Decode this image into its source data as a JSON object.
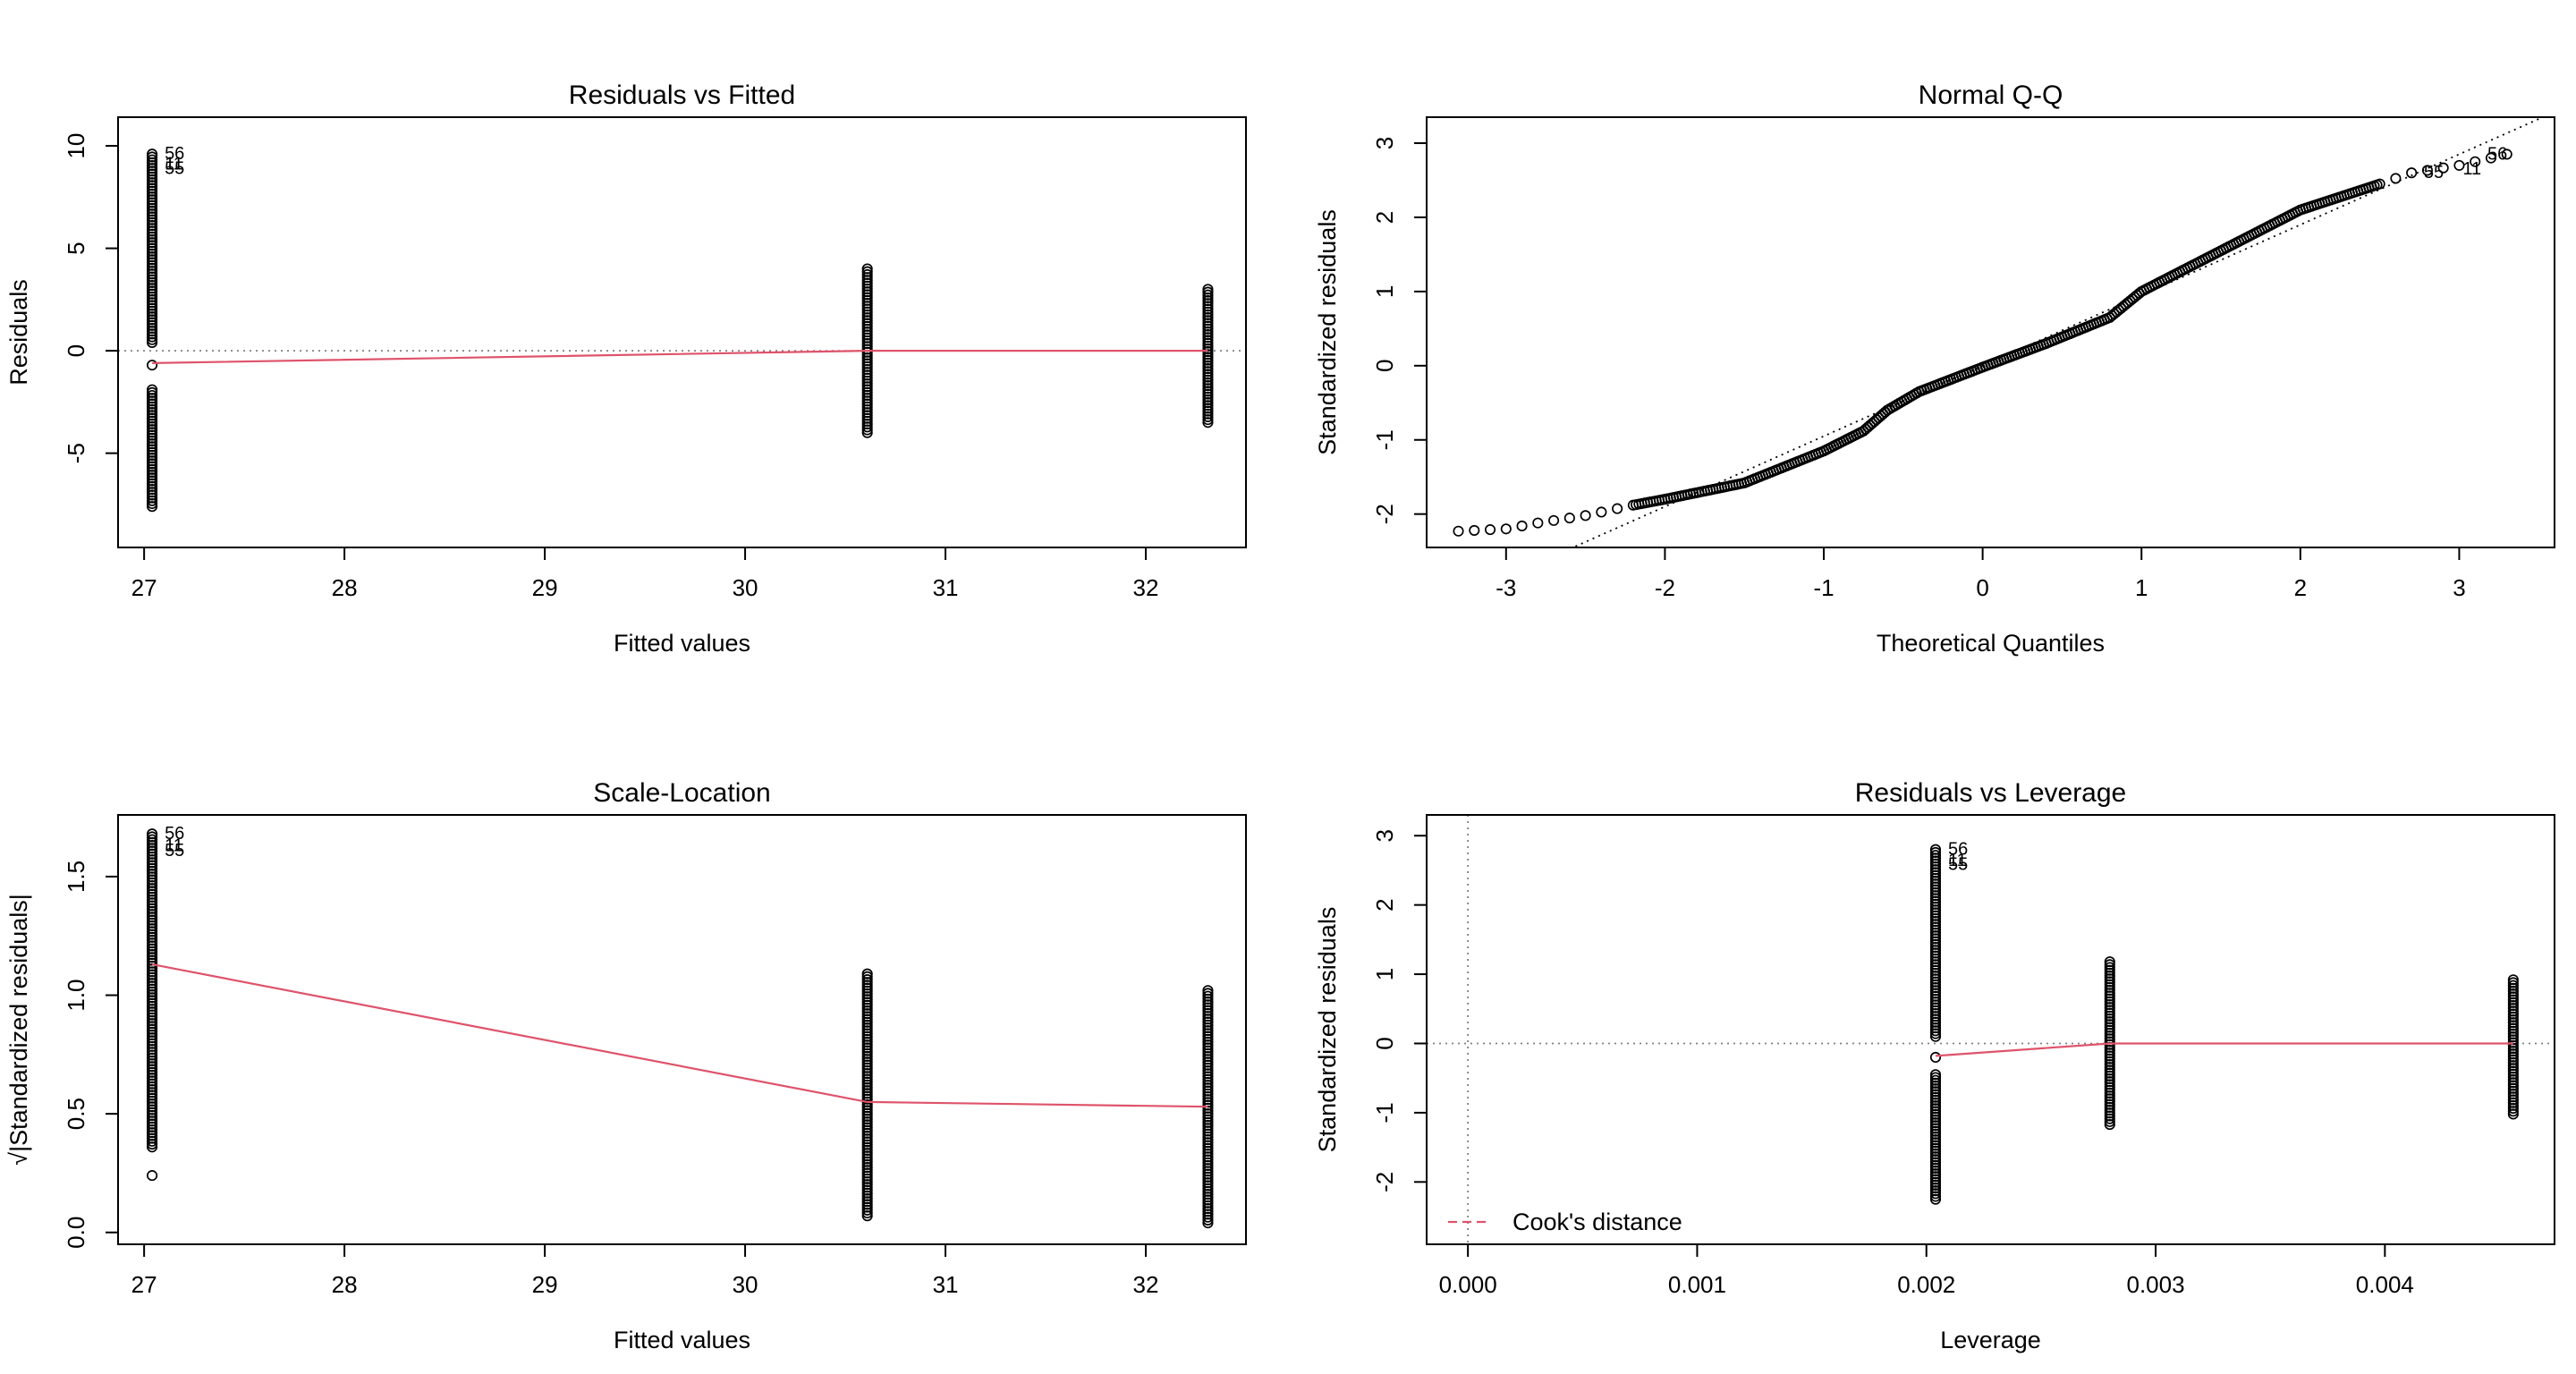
{
  "colors": {
    "smoother": "#DF536B",
    "reference": "#808080",
    "points": "#000000"
  },
  "chart_data": [
    {
      "type": "scatter",
      "title": "Residuals vs Fitted",
      "xlabel": "Fitted values",
      "ylabel": "Residuals",
      "xlim": [
        26.87,
        32.5
      ],
      "ylim": [
        -9.6,
        11.4
      ],
      "xticks": [
        27,
        28,
        29,
        30,
        31,
        32
      ],
      "yticks": [
        -5,
        0,
        5,
        10
      ],
      "reference_line": {
        "y": 0,
        "style": "dotted"
      },
      "groups": [
        {
          "x": 27.04,
          "segments": [
            [
              -7.6,
              -1.9
            ],
            [
              0.4,
              9.6
            ]
          ],
          "extra": [
            -0.7
          ]
        },
        {
          "x": 30.61,
          "segments": [
            [
              -4.0,
              4.0
            ]
          ]
        },
        {
          "x": 32.31,
          "segments": [
            [
              -3.5,
              3.0
            ]
          ]
        }
      ],
      "smoother": [
        [
          27.04,
          -0.6
        ],
        [
          30.61,
          0.0
        ],
        [
          32.31,
          0.0
        ]
      ],
      "point_labels": [
        {
          "text": "56",
          "x": 27.04,
          "y": 9.6
        },
        {
          "text": "11",
          "x": 27.04,
          "y": 9.1
        },
        {
          "text": "55",
          "x": 27.04,
          "y": 8.9
        }
      ]
    },
    {
      "type": "scatter",
      "title": "Normal Q-Q",
      "xlabel": "Theoretical Quantiles",
      "ylabel": "Standardized residuals",
      "xlim": [
        -3.5,
        3.6
      ],
      "ylim": [
        -2.45,
        3.35
      ],
      "xticks": [
        -3,
        -2,
        -1,
        0,
        1,
        2,
        3
      ],
      "yticks": [
        -2,
        -1,
        0,
        1,
        2,
        3
      ],
      "reference_line": {
        "slope": 0.95,
        "intercept": 0.0,
        "style": "dotted"
      },
      "qq_curve": [
        [
          -3.3,
          -2.23
        ],
        [
          -3.0,
          -2.2
        ],
        [
          -2.8,
          -2.12
        ],
        [
          -2.5,
          -2.02
        ],
        [
          -2.2,
          -1.88
        ],
        [
          -2.0,
          -1.8
        ],
        [
          -1.5,
          -1.58
        ],
        [
          -1.0,
          -1.15
        ],
        [
          -0.75,
          -0.88
        ],
        [
          -0.6,
          -0.6
        ],
        [
          -0.4,
          -0.35
        ],
        [
          0.0,
          -0.02
        ],
        [
          0.4,
          0.3
        ],
        [
          0.8,
          0.65
        ],
        [
          1.0,
          1.0
        ],
        [
          1.5,
          1.55
        ],
        [
          2.0,
          2.1
        ],
        [
          2.5,
          2.45
        ],
        [
          2.7,
          2.6
        ],
        [
          3.0,
          2.7
        ],
        [
          3.3,
          2.85
        ]
      ],
      "point_labels": [
        {
          "text": "56",
          "x": 3.2,
          "y": 2.85
        },
        {
          "text": "55",
          "x": 2.8,
          "y": 2.6
        },
        {
          "text": "11",
          "x": 3.0,
          "y": 2.65
        }
      ]
    },
    {
      "type": "scatter",
      "title": "Scale-Location",
      "xlabel": "Fitted values",
      "ylabel": "√|Standardized residuals|",
      "xlim": [
        26.87,
        32.5
      ],
      "ylim": [
        -0.05,
        1.76
      ],
      "xticks": [
        27,
        28,
        29,
        30,
        31,
        32
      ],
      "yticks": [
        0.0,
        0.5,
        1.0,
        1.5
      ],
      "groups": [
        {
          "x": 27.04,
          "segments": [
            [
              0.36,
              1.68
            ]
          ],
          "extra": [
            0.24
          ]
        },
        {
          "x": 30.61,
          "segments": [
            [
              0.07,
              1.09
            ]
          ]
        },
        {
          "x": 32.31,
          "segments": [
            [
              0.04,
              1.02
            ]
          ]
        }
      ],
      "smoother": [
        [
          27.04,
          1.13
        ],
        [
          30.61,
          0.55
        ],
        [
          32.31,
          0.53
        ]
      ],
      "point_labels": [
        {
          "text": "56",
          "x": 27.04,
          "y": 1.68
        },
        {
          "text": "11",
          "x": 27.04,
          "y": 1.63
        },
        {
          "text": "55",
          "x": 27.04,
          "y": 1.61
        }
      ]
    },
    {
      "type": "scatter",
      "title": "Residuals vs Leverage",
      "xlabel": "Leverage",
      "ylabel": "Standardized residuals",
      "xlim": [
        -0.00018,
        0.00474
      ],
      "ylim": [
        -2.9,
        3.3
      ],
      "xticks": [
        0.0,
        0.001,
        0.002,
        0.003,
        0.004
      ],
      "yticks": [
        -2,
        -1,
        0,
        1,
        2,
        3
      ],
      "reference_lines": [
        {
          "y": 0,
          "style": "dotted"
        },
        {
          "x": 0,
          "style": "dotted"
        }
      ],
      "groups": [
        {
          "x": 0.00204,
          "segments": [
            [
              -2.25,
              -0.45
            ],
            [
              0.1,
              2.8
            ]
          ],
          "extra": [
            -0.2
          ]
        },
        {
          "x": 0.0028,
          "segments": [
            [
              -1.17,
              1.18
            ]
          ]
        },
        {
          "x": 0.00456,
          "segments": [
            [
              -1.02,
              0.92
            ]
          ]
        }
      ],
      "smoother": [
        [
          0.00204,
          -0.18
        ],
        [
          0.0028,
          0.0
        ],
        [
          0.00456,
          0.0
        ]
      ],
      "point_labels": [
        {
          "text": "56",
          "x": 0.00204,
          "y": 2.8
        },
        {
          "text": "11",
          "x": 0.00204,
          "y": 2.64
        },
        {
          "text": "55",
          "x": 0.00204,
          "y": 2.58
        }
      ],
      "legend": {
        "label": "Cook's distance",
        "position": "bottom-left"
      }
    }
  ]
}
